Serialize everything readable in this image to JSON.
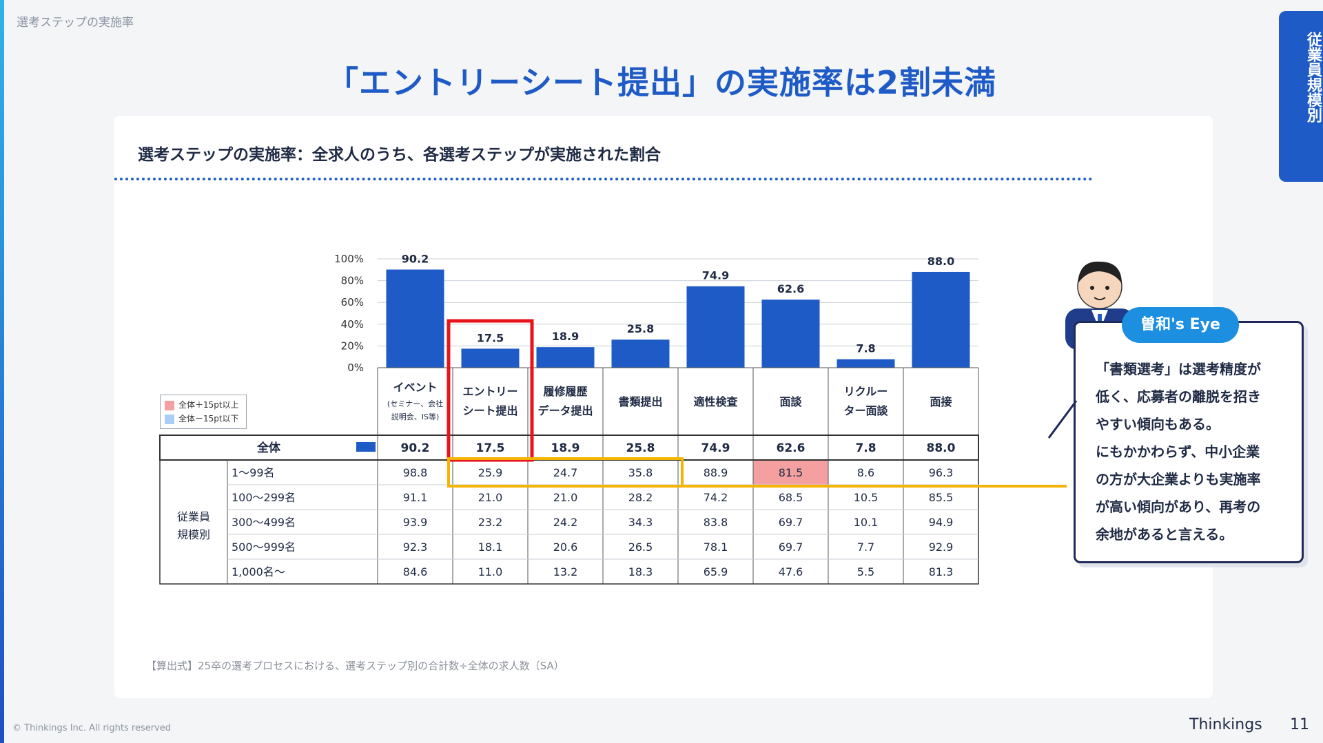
{
  "breadcrumb": "選考ステップの実施率",
  "page_title": "「エントリーシート提出」の実施率は2割未満",
  "side_tab": "従業員規模別",
  "card_subtitle": "選考ステップの実施率：全求人のうち、各選考ステップが実施された割合",
  "legend": {
    "high": "全体＋15pt以上",
    "low": "全体－15pt以下",
    "high_color": "#f4a0a0",
    "low_color": "#a9cff5"
  },
  "chart_data": {
    "type": "bar",
    "categories": [
      "イベント",
      "エントリーシート提出",
      "履修履歴データ提出",
      "書類提出",
      "適性検査",
      "面談",
      "リクルーター面談",
      "面接"
    ],
    "category_labels": [
      [
        "イベント",
        "(セミナー、会社",
        "説明会、IS等)"
      ],
      [
        "エントリー",
        "シート提出"
      ],
      [
        "履修履歴",
        "データ提出"
      ],
      [
        "書類提出"
      ],
      [
        "適性検査"
      ],
      [
        "面談"
      ],
      [
        "リクルー",
        "ター面談"
      ],
      [
        "面接"
      ]
    ],
    "values": [
      90.2,
      17.5,
      18.9,
      25.8,
      74.9,
      62.6,
      7.8,
      88.0
    ],
    "value_labels": [
      "90.2",
      "17.5",
      "18.9",
      "25.8",
      "74.9",
      "62.6",
      "7.8",
      "88.0"
    ],
    "ylim": [
      0,
      100
    ],
    "yticks": [
      "0%",
      "20%",
      "40%",
      "60%",
      "80%",
      "100%"
    ],
    "bar_color": "#1e5bc6",
    "highlight_category": "エントリーシート提出"
  },
  "table": {
    "total_label": "全体",
    "total_values": [
      "90.2",
      "17.5",
      "18.9",
      "25.8",
      "74.9",
      "62.6",
      "7.8",
      "88.0"
    ],
    "group_label": [
      "従業員",
      "規模別"
    ],
    "rows": [
      {
        "label": "1〜99名",
        "values": [
          "98.8",
          "25.9",
          "24.7",
          "35.8",
          "88.9",
          "81.5",
          "8.6",
          "96.3"
        ]
      },
      {
        "label": "100〜299名",
        "values": [
          "91.1",
          "21.0",
          "21.0",
          "28.2",
          "74.2",
          "68.5",
          "10.5",
          "85.5"
        ]
      },
      {
        "label": "300〜499名",
        "values": [
          "93.9",
          "23.2",
          "24.2",
          "34.3",
          "83.8",
          "69.7",
          "10.1",
          "94.9"
        ]
      },
      {
        "label": "500〜999名",
        "values": [
          "92.3",
          "18.1",
          "20.6",
          "26.5",
          "78.1",
          "69.7",
          "7.7",
          "92.9"
        ]
      },
      {
        "label": "1,000名〜",
        "values": [
          "84.6",
          "11.0",
          "13.2",
          "18.3",
          "65.9",
          "47.6",
          "5.5",
          "81.3"
        ]
      }
    ],
    "highlight_cells": [
      {
        "row": 0,
        "col": 5,
        "color": "#f4a0a0"
      }
    ]
  },
  "eye": {
    "badge": "曽和's Eye",
    "lines": [
      "「書類選考」は選考精度が",
      "低く、応募者の離脱を招き",
      "やすい傾向もある。",
      "にもかかわらず、中小企業",
      "の方が大企業よりも実施率",
      "が高い傾向があり、再考の",
      "余地があると言える。"
    ]
  },
  "footnote": "【算出式】25卒の選考プロセスにおける、選考ステップ別の合計数÷全体の求人数（SA）",
  "copyright": "© Thinkings Inc. All rights reserved",
  "brand": "Thinkings",
  "page_number": "11",
  "colors": {
    "accent": "#1e5bc6",
    "highlight_red": "#e8141b",
    "highlight_yellow": "#f4b400"
  }
}
